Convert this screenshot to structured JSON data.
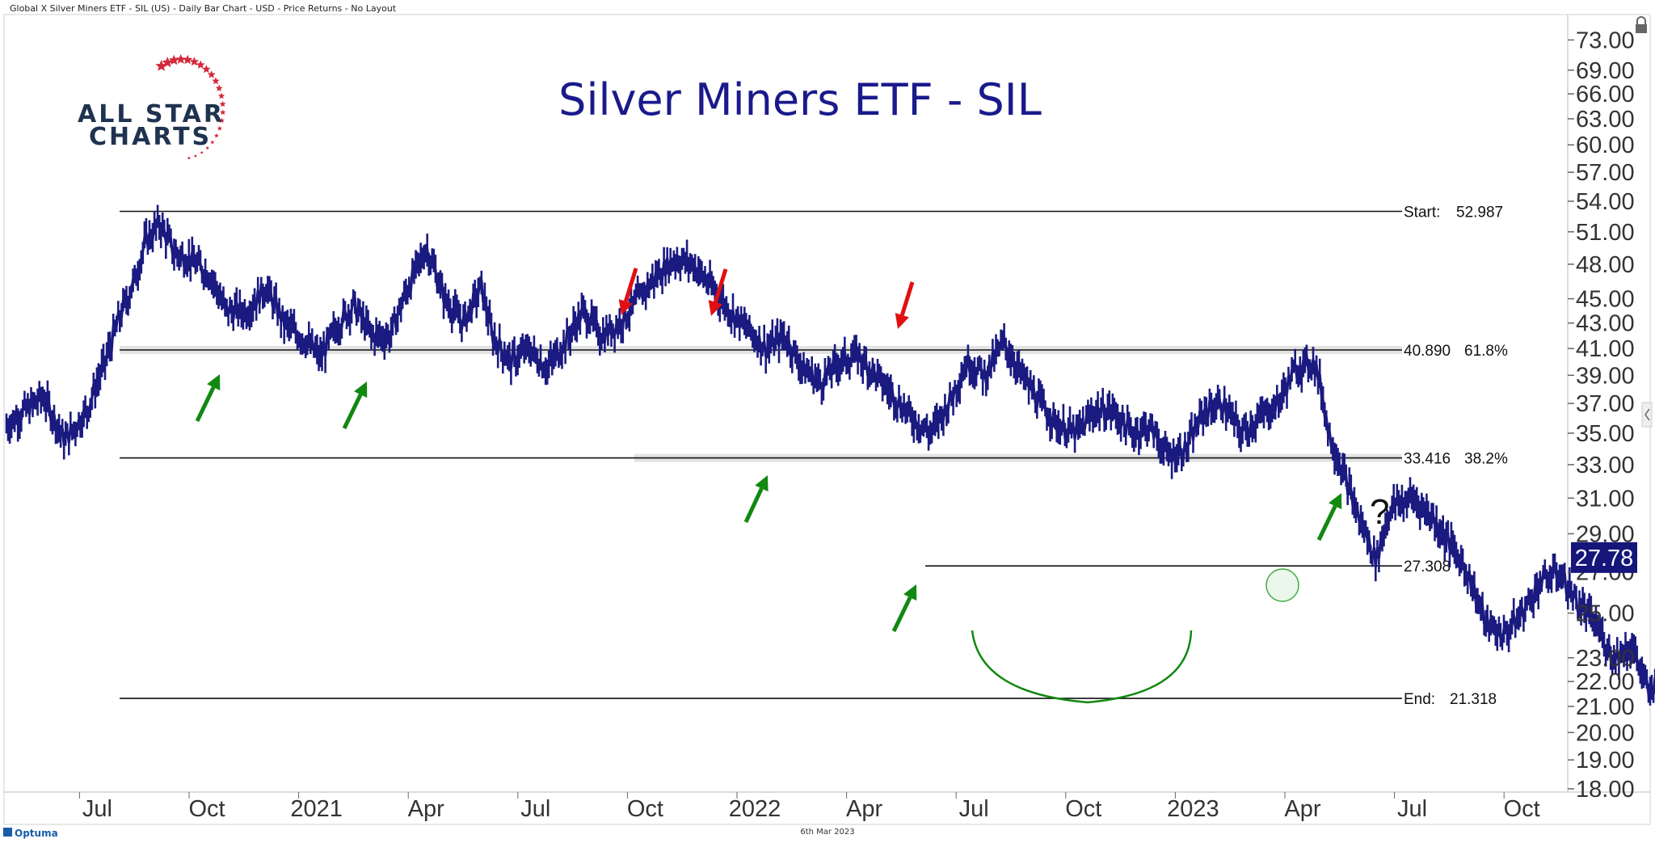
{
  "header": {
    "description": "Global X Silver Miners ETF - SIL (US) - Daily Bar Chart - USD - Price Returns - No Layout"
  },
  "logo": {
    "line1": "ALL STAR",
    "line2": "CHARTS",
    "star_color": "#d42a3c",
    "text_color": "#1f3350"
  },
  "footer": {
    "brand": "Optuma",
    "date": "6th Mar 2023"
  },
  "chart_data": {
    "type": "bar",
    "title": "Silver Miners ETF - SIL",
    "y_scale": "log",
    "ylim": [
      18.0,
      74.5
    ],
    "y_ticks": [
      "73.00",
      "69.00",
      "66.00",
      "63.00",
      "60.00",
      "57.00",
      "54.00",
      "51.00",
      "48.00",
      "45.00",
      "43.00",
      "41.00",
      "39.00",
      "37.00",
      "35.00",
      "33.00",
      "31.00",
      "29.00",
      "27.00",
      "25.00",
      "23.00",
      "22.00",
      "21.00",
      "20.00",
      "19.00",
      "18.00"
    ],
    "x_ticks": [
      "Jul",
      "Oct",
      "2021",
      "Apr",
      "Jul",
      "Oct",
      "2022",
      "Apr",
      "Jul",
      "Oct",
      "2023",
      "Apr",
      "Jul",
      "Oct"
    ],
    "last_price": "27.78",
    "last_price_value": 27.78,
    "series_color": "#1a1a80",
    "price_path": [
      [
        0,
        35.5
      ],
      [
        1.0,
        37.5
      ],
      [
        1.6,
        34.5
      ],
      [
        2.2,
        36.5
      ],
      [
        2.7,
        40.0
      ],
      [
        3.1,
        43.5
      ],
      [
        3.5,
        46.5
      ],
      [
        3.8,
        50.0
      ],
      [
        4.2,
        51.8
      ],
      [
        4.6,
        49.0
      ],
      [
        5.0,
        48.5
      ],
      [
        5.6,
        47.0
      ],
      [
        6.0,
        44.0
      ],
      [
        6.6,
        44.0
      ],
      [
        7.1,
        46.0
      ],
      [
        7.6,
        43.0
      ],
      [
        8.2,
        41.6
      ],
      [
        8.6,
        40.3
      ],
      [
        9.0,
        42.5
      ],
      [
        9.5,
        44.5
      ],
      [
        10.0,
        42.0
      ],
      [
        10.5,
        42.0
      ],
      [
        11.0,
        46.0
      ],
      [
        11.5,
        49.5
      ],
      [
        12.0,
        45.0
      ],
      [
        12.5,
        43.0
      ],
      [
        13.0,
        46.0
      ],
      [
        13.3,
        42.0
      ],
      [
        13.8,
        40.0
      ],
      [
        14.3,
        41.0
      ],
      [
        14.8,
        39.5
      ],
      [
        15.3,
        41.5
      ],
      [
        15.8,
        44.0
      ],
      [
        16.3,
        42.0
      ],
      [
        16.8,
        43.0
      ],
      [
        17.3,
        45.0
      ],
      [
        17.8,
        47.0
      ],
      [
        18.3,
        48.5
      ],
      [
        18.8,
        48.0
      ],
      [
        19.3,
        46.0
      ],
      [
        19.8,
        44.0
      ],
      [
        20.3,
        42.5
      ],
      [
        20.8,
        41.0
      ],
      [
        21.3,
        42.0
      ],
      [
        21.8,
        39.5
      ],
      [
        22.3,
        38.5
      ],
      [
        22.8,
        40.0
      ],
      [
        23.3,
        40.5
      ],
      [
        23.8,
        39.0
      ],
      [
        24.3,
        37.5
      ],
      [
        24.8,
        36.0
      ],
      [
        25.3,
        35.0
      ],
      [
        25.8,
        37.0
      ],
      [
        26.3,
        40.0
      ],
      [
        26.8,
        39.0
      ],
      [
        27.3,
        41.5
      ],
      [
        27.8,
        39.0
      ],
      [
        28.3,
        37.0
      ],
      [
        28.8,
        35.5
      ],
      [
        29.3,
        35.0
      ],
      [
        29.8,
        36.5
      ],
      [
        30.3,
        36.5
      ],
      [
        30.8,
        35.0
      ],
      [
        31.3,
        35.5
      ],
      [
        31.8,
        33.5
      ],
      [
        32.3,
        34.0
      ],
      [
        32.8,
        36.5
      ],
      [
        33.3,
        37.0
      ],
      [
        33.8,
        35.0
      ],
      [
        34.3,
        36.0
      ],
      [
        34.8,
        37.0
      ],
      [
        35.3,
        39.5
      ],
      [
        35.8,
        40.0
      ],
      [
        36.0,
        38.0
      ],
      [
        36.2,
        35.0
      ],
      [
        36.6,
        32.5
      ],
      [
        37.0,
        30.0
      ],
      [
        37.5,
        27.6
      ],
      [
        37.9,
        30.5
      ],
      [
        38.5,
        31.0
      ],
      [
        39.0,
        30.0
      ],
      [
        39.5,
        28.5
      ],
      [
        40.0,
        27.0
      ],
      [
        40.5,
        24.5
      ],
      [
        41.0,
        24.0
      ],
      [
        41.5,
        25.0
      ],
      [
        42.0,
        26.5
      ],
      [
        42.5,
        27.0
      ],
      [
        43.0,
        25.5
      ],
      [
        43.5,
        24.5
      ],
      [
        44.0,
        23.0
      ],
      [
        44.5,
        23.5
      ],
      [
        45.0,
        21.4
      ],
      [
        45.5,
        23.5
      ],
      [
        46.0,
        25.5
      ],
      [
        46.5,
        25.0
      ],
      [
        47.0,
        24.5
      ],
      [
        47.5,
        25.5
      ],
      [
        48.0,
        27.5
      ],
      [
        48.5,
        28.5
      ],
      [
        49.0,
        29.0
      ],
      [
        49.5,
        28.0
      ],
      [
        50.0,
        29.0
      ],
      [
        50.5,
        31.0
      ],
      [
        51.0,
        31.5
      ],
      [
        51.5,
        31.5
      ],
      [
        52.0,
        30.5
      ],
      [
        52.5,
        28.5
      ],
      [
        53.0,
        27.5
      ],
      [
        53.3,
        26.8
      ],
      [
        53.7,
        27.78
      ]
    ],
    "levels": [
      {
        "label": "Start:",
        "value_text": "52.987",
        "value": 52.987,
        "pct": ""
      },
      {
        "label": "",
        "value_text": "40.890",
        "value": 40.89,
        "pct": "61.8%"
      },
      {
        "label": "",
        "value_text": "33.416",
        "value": 33.416,
        "pct": "38.2%"
      },
      {
        "label": "",
        "value_text": "27.308",
        "value": 27.308,
        "pct": ""
      },
      {
        "label": "End:",
        "value_text": "21.318",
        "value": 21.318,
        "pct": ""
      }
    ],
    "annotations": {
      "arrows": [
        {
          "dir": "up",
          "color": "#118811"
        },
        {
          "dir": "up",
          "color": "#118811"
        },
        {
          "dir": "up",
          "color": "#118811"
        },
        {
          "dir": "up",
          "color": "#118811"
        },
        {
          "dir": "up",
          "color": "#118811"
        },
        {
          "dir": "down",
          "color": "#e01010"
        },
        {
          "dir": "down",
          "color": "#e01010"
        },
        {
          "dir": "down",
          "color": "#e01010"
        }
      ],
      "question_mark": "?",
      "rounded_bottom_color": "#118811",
      "circle_color": "#44aa44"
    }
  }
}
